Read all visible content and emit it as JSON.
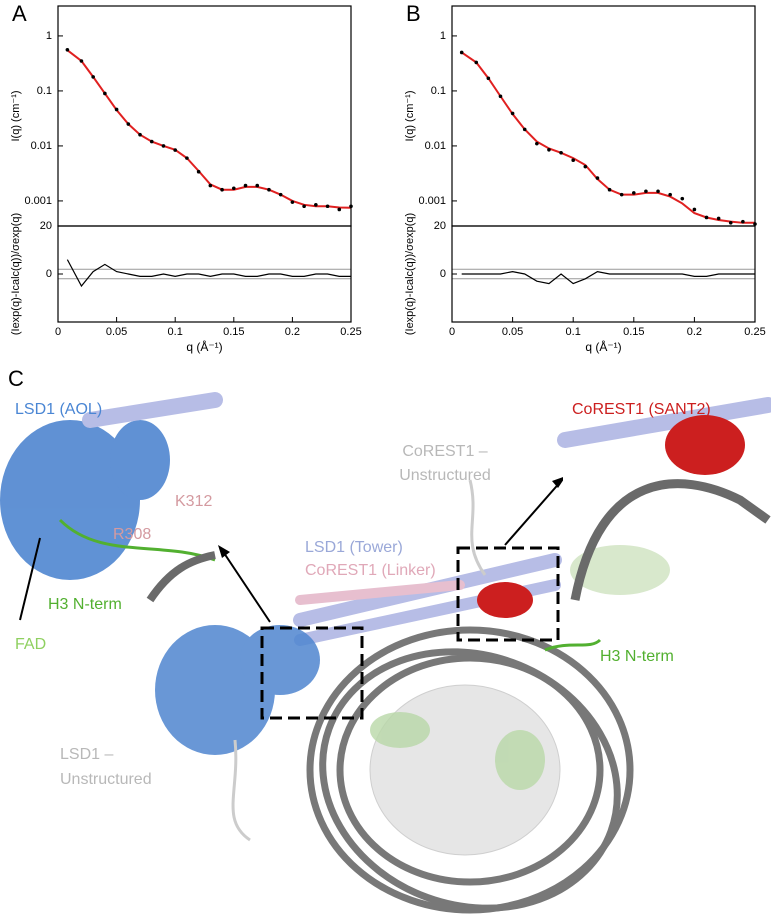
{
  "chart_data": [
    {
      "type": "scatter",
      "panel": "A",
      "ylabel": "I(q)  (cm⁻¹)",
      "log_y": true,
      "xlim": [
        0,
        0.25
      ],
      "ylim": [
        0.00035,
        3.5
      ],
      "yticks": [
        1,
        0.1,
        0.01,
        0.001
      ],
      "x": [
        0.008,
        0.02,
        0.03,
        0.04,
        0.05,
        0.06,
        0.07,
        0.08,
        0.09,
        0.1,
        0.11,
        0.12,
        0.13,
        0.14,
        0.15,
        0.16,
        0.17,
        0.18,
        0.19,
        0.2,
        0.21,
        0.22,
        0.23,
        0.24,
        0.25
      ],
      "series": [
        {
          "color": "#e02020",
          "kind": "line",
          "values": [
            0.55,
            0.35,
            0.18,
            0.09,
            0.045,
            0.025,
            0.016,
            0.012,
            0.01,
            0.0085,
            0.006,
            0.0035,
            0.002,
            0.0016,
            0.0016,
            0.0018,
            0.0018,
            0.0016,
            0.0013,
            0.001,
            0.00085,
            0.0008,
            0.0008,
            0.00076,
            0.00075
          ]
        },
        {
          "color": "#000000",
          "kind": "points",
          "values": [
            0.56,
            0.35,
            0.18,
            0.09,
            0.046,
            0.025,
            0.016,
            0.012,
            0.01,
            0.0084,
            0.006,
            0.0034,
            0.0019,
            0.0016,
            0.0017,
            0.0019,
            0.0019,
            0.0016,
            0.0013,
            0.00095,
            0.0008,
            0.00085,
            0.0008,
            0.0007,
            0.0008
          ]
        }
      ]
    },
    {
      "type": "line",
      "ylabel": "(Iexp(q)-Icalc(q))/σexp(q)",
      "xlabel": "q (Å⁻¹)",
      "xlim": [
        0,
        0.25
      ],
      "xticks": [
        0,
        0.05,
        0.1,
        0.15,
        0.2,
        0.25
      ],
      "ylim": [
        -20,
        20
      ],
      "yticks": [
        0,
        20
      ],
      "hlines": [
        -2,
        2
      ],
      "x": [
        0.008,
        0.02,
        0.03,
        0.04,
        0.05,
        0.06,
        0.07,
        0.08,
        0.09,
        0.1,
        0.11,
        0.12,
        0.13,
        0.14,
        0.15,
        0.16,
        0.17,
        0.18,
        0.19,
        0.2,
        0.21,
        0.22,
        0.23,
        0.24,
        0.25
      ],
      "color": "#000000",
      "values": [
        6,
        -5,
        1,
        4,
        1,
        0,
        -1,
        -1,
        0,
        -1,
        0,
        0,
        -1,
        0,
        0,
        -1,
        -1,
        0,
        0,
        -1,
        -1,
        0,
        0,
        -1,
        -1
      ]
    },
    {
      "type": "scatter",
      "panel": "B",
      "ylabel": "I(q)  (cm⁻¹)",
      "log_y": true,
      "xlim": [
        0,
        0.25
      ],
      "ylim": [
        0.00035,
        3.5
      ],
      "yticks": [
        1,
        0.1,
        0.01,
        0.001
      ],
      "x": [
        0.008,
        0.02,
        0.03,
        0.04,
        0.05,
        0.06,
        0.07,
        0.08,
        0.09,
        0.1,
        0.11,
        0.12,
        0.13,
        0.14,
        0.15,
        0.16,
        0.17,
        0.18,
        0.19,
        0.2,
        0.21,
        0.22,
        0.23,
        0.24,
        0.25
      ],
      "series": [
        {
          "color": "#e02020",
          "kind": "line",
          "values": [
            0.5,
            0.33,
            0.17,
            0.08,
            0.038,
            0.02,
            0.012,
            0.009,
            0.0075,
            0.006,
            0.0045,
            0.0025,
            0.0016,
            0.0013,
            0.0013,
            0.0014,
            0.0014,
            0.0012,
            0.0009,
            0.0006,
            0.0005,
            0.00045,
            0.00042,
            0.0004,
            0.0004
          ]
        },
        {
          "color": "#000000",
          "kind": "points",
          "values": [
            0.5,
            0.33,
            0.17,
            0.08,
            0.039,
            0.02,
            0.011,
            0.0085,
            0.0075,
            0.0055,
            0.0042,
            0.0026,
            0.0016,
            0.0013,
            0.0014,
            0.0015,
            0.0015,
            0.0013,
            0.0011,
            0.0007,
            0.0005,
            0.00048,
            0.0004,
            0.00042,
            0.00038
          ]
        }
      ]
    },
    {
      "type": "line",
      "ylabel": "(Iexp(q)-Icalc(q))/σexp(q)",
      "xlabel": "q (Å⁻¹)",
      "xlim": [
        0,
        0.25
      ],
      "xticks": [
        0,
        0.05,
        0.1,
        0.15,
        0.2,
        0.25
      ],
      "ylim": [
        -20,
        20
      ],
      "yticks": [
        0,
        20
      ],
      "hlines": [
        -2,
        2
      ],
      "x": [
        0.008,
        0.02,
        0.03,
        0.04,
        0.05,
        0.06,
        0.07,
        0.08,
        0.09,
        0.1,
        0.11,
        0.12,
        0.13,
        0.14,
        0.15,
        0.16,
        0.17,
        0.18,
        0.19,
        0.2,
        0.21,
        0.22,
        0.23,
        0.24,
        0.25
      ],
      "color": "#000000",
      "values": [
        0,
        0,
        0,
        0,
        1,
        0,
        -3,
        -4,
        0,
        -4,
        -2,
        1,
        0,
        0,
        0,
        0,
        0,
        0,
        0,
        -1,
        -1,
        0,
        0,
        0,
        0
      ]
    }
  ],
  "panel_c": {
    "label": "C",
    "lsd1_aol": "LSD1 (AOL)",
    "corest1_sant2": "CoREST1 (SANT2)",
    "corest1_unstructured": [
      "CoREST1 –",
      "Unstructured"
    ],
    "k312": "K312",
    "r308": "R308",
    "lsd1_tower": "LSD1 (Tower)",
    "corest1_linker": "CoREST1 (Linker)",
    "h3_left": "H3 N-term",
    "fad": "FAD",
    "h3_right": "H3 N-term",
    "lsd1_unstructured": [
      "LSD1 –",
      "Unstructured"
    ]
  }
}
